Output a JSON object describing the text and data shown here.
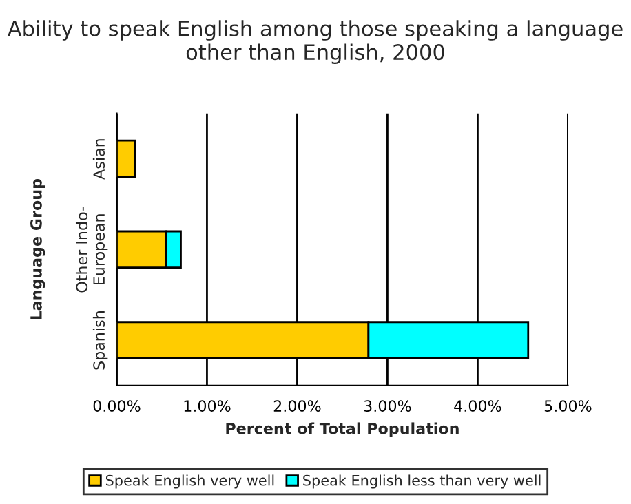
{
  "chart_data": {
    "type": "bar",
    "orientation": "horizontal",
    "stacked": true,
    "title": "Ability to speak English among those speaking a language other than English, 2000",
    "xlabel": "Percent of Total Population",
    "ylabel": "Language Group",
    "categories": [
      "Asian",
      "Other Indo-\nEuropean",
      "Spanish"
    ],
    "series": [
      {
        "name": "Speak English very well",
        "color": "#ffcc00",
        "values": [
          0.2,
          0.55,
          2.79
        ]
      },
      {
        "name": "Speak English less than very well",
        "color": "#00ffff",
        "values": [
          null,
          0.16,
          1.77
        ]
      }
    ],
    "xlim": [
      0,
      5
    ],
    "xticks": [
      {
        "value": 0,
        "label": "0.00%"
      },
      {
        "value": 1,
        "label": "1.00%"
      },
      {
        "value": 2,
        "label": "2.00%"
      },
      {
        "value": 3,
        "label": "3.00%"
      },
      {
        "value": 4,
        "label": "4.00%"
      },
      {
        "value": 5,
        "label": "5.00%"
      }
    ],
    "grid": "x",
    "legend": "bottom"
  }
}
